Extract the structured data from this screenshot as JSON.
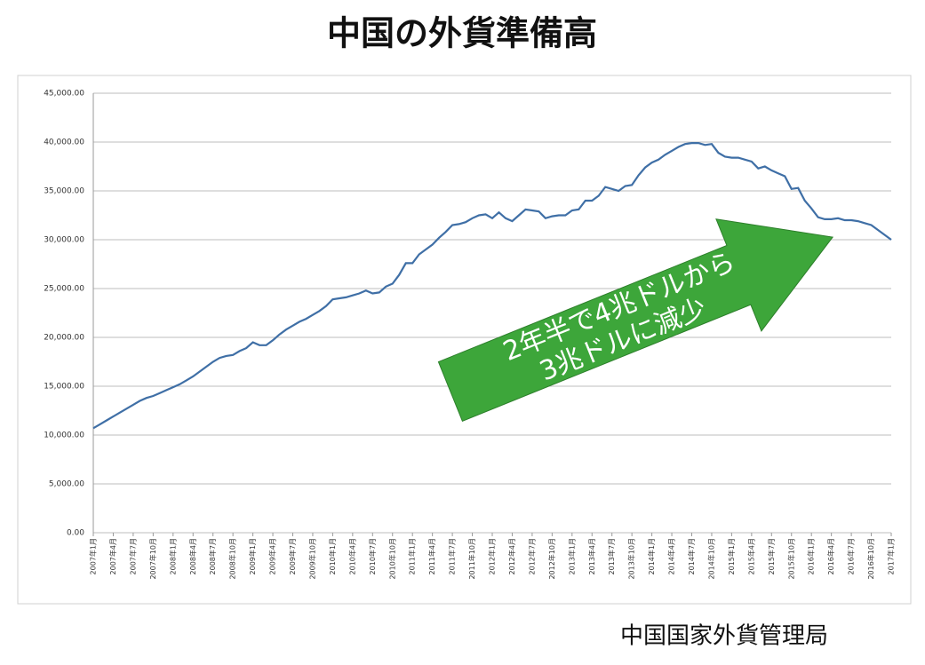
{
  "chart_data": {
    "type": "line",
    "title": "中国の外貨準備高",
    "source": "中国国家外貨管理局",
    "annotation": [
      "2年半で4兆ドルから",
      "3兆ドルに減少"
    ],
    "color": "#3f6fa6",
    "grid": true,
    "ylim": [
      0,
      45000
    ],
    "yticks": [
      {
        "value": 0,
        "label": "0.00"
      },
      {
        "value": 5000,
        "label": "5,000.00"
      },
      {
        "value": 10000,
        "label": "10,000.00"
      },
      {
        "value": 15000,
        "label": "15,000.00"
      },
      {
        "value": 20000,
        "label": "20,000.00"
      },
      {
        "value": 25000,
        "label": "25,000.00"
      },
      {
        "value": 30000,
        "label": "30,000.00"
      },
      {
        "value": 35000,
        "label": "35,000.00"
      },
      {
        "value": 40000,
        "label": "40,000.00"
      },
      {
        "value": 45000,
        "label": "45,000.00"
      }
    ],
    "categories": [
      "2007年1月",
      null,
      null,
      "2007年4月",
      null,
      null,
      "2007年7月",
      null,
      null,
      "2007年10月",
      null,
      null,
      "2008年1月",
      null,
      null,
      "2008年4月",
      null,
      null,
      "2008年7月",
      null,
      null,
      "2008年10月",
      null,
      null,
      "2009年1月",
      null,
      null,
      "2009年4月",
      null,
      null,
      "2009年7月",
      null,
      null,
      "2009年10月",
      null,
      null,
      "2010年1月",
      null,
      null,
      "2010年4月",
      null,
      null,
      "2010年7月",
      null,
      null,
      "2010年10月",
      null,
      null,
      "2011年1月",
      null,
      null,
      "2011年4月",
      null,
      null,
      "2011年7月",
      null,
      null,
      "2011年10月",
      null,
      null,
      "2012年1月",
      null,
      null,
      "2012年4月",
      null,
      null,
      "2012年7月",
      null,
      null,
      "2012年10月",
      null,
      null,
      "2013年1月",
      null,
      null,
      "2013年4月",
      null,
      null,
      "2013年7月",
      null,
      null,
      "2013年10月",
      null,
      null,
      "2014年1月",
      null,
      null,
      "2014年4月",
      null,
      null,
      "2014年7月",
      null,
      null,
      "2014年10月",
      null,
      null,
      "2015年1月",
      null,
      null,
      "2015年4月",
      null,
      null,
      "2015年7月",
      null,
      null,
      "2015年10月",
      null,
      null,
      "2016年1月",
      null,
      null,
      "2016年4月",
      null,
      null,
      "2016年7月",
      null,
      null,
      "2016年10月",
      null,
      null,
      "2017年1月"
    ],
    "values": [
      10700,
      11100,
      11500,
      11900,
      12300,
      12700,
      13100,
      13500,
      13800,
      14000,
      14300,
      14600,
      14900,
      15200,
      15600,
      16000,
      16500,
      17000,
      17500,
      17900,
      18100,
      18200,
      18600,
      18900,
      19500,
      19200,
      19200,
      19700,
      20300,
      20800,
      21200,
      21600,
      21900,
      22300,
      22700,
      23200,
      23900,
      24000,
      24100,
      24300,
      24500,
      24800,
      24500,
      24600,
      25200,
      25500,
      26400,
      27600,
      27600,
      28500,
      29000,
      29500,
      30200,
      30800,
      31500,
      31600,
      31800,
      32200,
      32500,
      32600,
      32200,
      32800,
      32200,
      31900,
      32500,
      33100,
      33000,
      32900,
      32200,
      32400,
      32500,
      32500,
      33000,
      33100,
      34000,
      34000,
      34500,
      35400,
      35200,
      35000,
      35500,
      35600,
      36600,
      37400,
      37900,
      38200,
      38700,
      39100,
      39500,
      39800,
      39900,
      39900,
      39700,
      39800,
      38900,
      38500,
      38400,
      38400,
      38200,
      38000,
      37300,
      37500,
      37100,
      36800,
      36500,
      35200,
      35300,
      34000,
      33200,
      32300,
      32100,
      32100,
      32200,
      32000,
      32000,
      31900,
      31700,
      31500,
      31000,
      30500,
      30000
    ]
  }
}
